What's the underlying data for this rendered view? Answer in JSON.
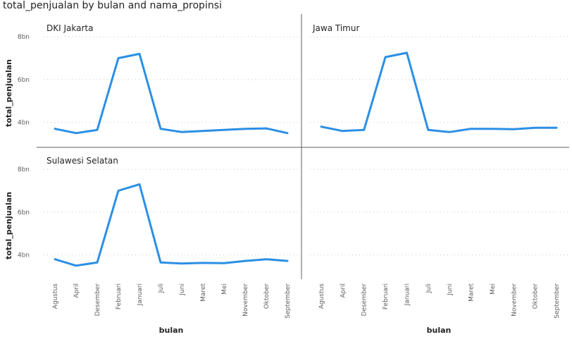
{
  "title": "total_penjualan by bulan and nama_propinsi",
  "colors": {
    "series": "#2b8fe5"
  },
  "chart_data": {
    "type": "line",
    "layout": "small-multiples",
    "title": "total_penjualan by bulan and nama_propinsi",
    "xlabel": "bulan",
    "ylabel": "total_penjualan",
    "categories": [
      "Agustus",
      "April",
      "Desember",
      "Februari",
      "Januari",
      "Juli",
      "Juni",
      "Maret",
      "Mei",
      "November",
      "Oktober",
      "September"
    ],
    "y_ticks": [
      {
        "value": 4,
        "label": "4bn"
      },
      {
        "value": 6,
        "label": "6bn"
      },
      {
        "value": 8,
        "label": "8bn"
      }
    ],
    "ylim": [
      3.0,
      8.4
    ],
    "y_unit": "bn",
    "grid": true,
    "panels": [
      {
        "name": "DKI Jakarta",
        "values": [
          3.7,
          3.5,
          3.65,
          7.0,
          7.2,
          3.7,
          3.55,
          3.6,
          3.65,
          3.7,
          3.72,
          3.5
        ]
      },
      {
        "name": "Jawa Timur",
        "values": [
          3.8,
          3.6,
          3.65,
          7.05,
          7.25,
          3.65,
          3.55,
          3.7,
          3.7,
          3.68,
          3.75,
          3.75
        ]
      },
      {
        "name": "Sulawesi Selatan",
        "values": [
          3.8,
          3.5,
          3.65,
          7.0,
          7.3,
          3.65,
          3.6,
          3.63,
          3.62,
          3.72,
          3.8,
          3.72
        ]
      }
    ]
  }
}
